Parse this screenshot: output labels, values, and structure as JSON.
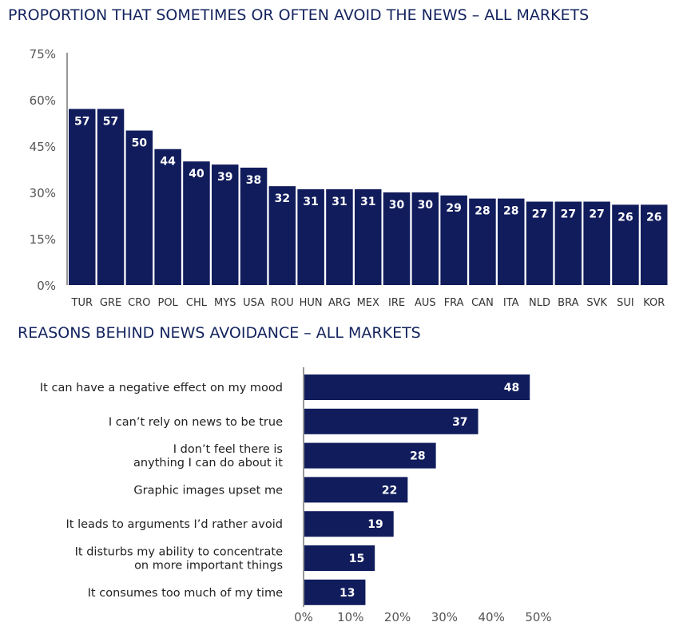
{
  "chart_data": [
    {
      "type": "bar",
      "title": "PROPORTION THAT SOMETIMES OR OFTEN AVOID THE NEWS – ALL MARKETS",
      "categories": [
        "TUR",
        "GRE",
        "CRO",
        "POL",
        "CHL",
        "MYS",
        "USA",
        "ROU",
        "HUN",
        "ARG",
        "MEX",
        "IRE",
        "AUS",
        "FRA",
        "CAN",
        "ITA",
        "NLD",
        "BRA",
        "SVK",
        "SUI",
        "KOR"
      ],
      "values": [
        57,
        57,
        50,
        44,
        40,
        39,
        38,
        32,
        31,
        31,
        31,
        30,
        30,
        29,
        28,
        28,
        27,
        27,
        27,
        26,
        26
      ],
      "ylim": [
        0,
        75
      ],
      "yticks": [
        "0%",
        "15%",
        "30%",
        "45%",
        "60%",
        "75%"
      ],
      "color": "#111c5c"
    },
    {
      "type": "bar",
      "orientation": "horizontal",
      "title": "REASONS BEHIND NEWS AVOIDANCE – ALL MARKETS",
      "categories": [
        [
          "It can have a negative effect on my mood"
        ],
        [
          "I can’t rely on news to be true"
        ],
        [
          "I don’t feel there is",
          "anything I can do about it"
        ],
        [
          "Graphic images upset me"
        ],
        [
          "It leads to arguments I’d rather avoid"
        ],
        [
          "It disturbs my ability to concentrate",
          "on more important things"
        ],
        [
          "It consumes too much of my time"
        ]
      ],
      "values": [
        48,
        37,
        28,
        22,
        19,
        15,
        13
      ],
      "xlim": [
        0,
        50
      ],
      "xticks": [
        "0%",
        "10%",
        "20%",
        "30%",
        "40%",
        "50%"
      ],
      "color": "#111c5c"
    }
  ]
}
